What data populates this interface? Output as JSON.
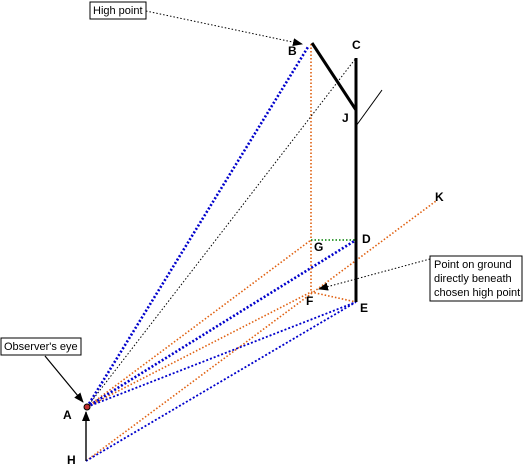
{
  "figure": {
    "points": {
      "A": "A",
      "B": "B",
      "C": "C",
      "D": "D",
      "E": "E",
      "F": "F",
      "G": "G",
      "H": "H",
      "J": "J",
      "K": "K"
    },
    "callouts": {
      "high_point": "High point",
      "observers_eye": "Observer's eye",
      "ground_point": [
        "Point on ground",
        "directly beneath",
        "chosen high point"
      ]
    },
    "colors": {
      "blue": "#0000cc",
      "orange": "#e06010",
      "green": "#008000",
      "black": "#000000"
    }
  }
}
